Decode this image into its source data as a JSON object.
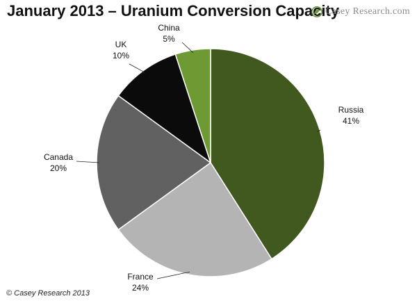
{
  "header": {
    "title": "January 2013 – Uranium Conversion Capacity",
    "brand": "Casey Research.com"
  },
  "footer": {
    "copyright": "© Casey Research 2013"
  },
  "colors": {
    "Russia": "#41581f",
    "France": "#b4b4b4",
    "Canada": "#616161",
    "UK": "#0b0b0b",
    "China": "#6e9a34",
    "edge": "#ffffff",
    "leader": "#222222"
  },
  "chart_data": {
    "type": "pie",
    "title": "January 2013 – Uranium Conversion Capacity",
    "start_angle_deg": 0,
    "direction": "clockwise",
    "slices": [
      {
        "label": "Russia",
        "value": 41,
        "value_label": "41%"
      },
      {
        "label": "France",
        "value": 24,
        "value_label": "24%"
      },
      {
        "label": "Canada",
        "value": 20,
        "value_label": "20%"
      },
      {
        "label": "UK",
        "value": 10,
        "value_label": "10%"
      },
      {
        "label": "China",
        "value": 5,
        "value_label": "5%"
      }
    ],
    "legend": "none",
    "data_labels": "outside with leader lines"
  }
}
